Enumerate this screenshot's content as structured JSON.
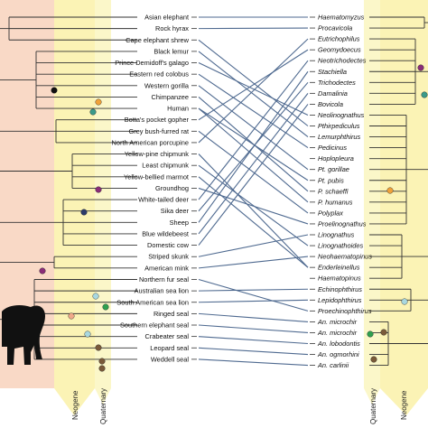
{
  "hosts": [
    "Asian elephant",
    "Rock hyrax",
    "Cape elephant shrew",
    "Black lemur",
    "Prince Demidoff's galago",
    "Eastern red colobus",
    "Western gorilla",
    "Chimpanzee",
    "Human",
    "Botta's pocket gopher",
    "Grey bush-furred rat",
    "North American porcupine",
    "Yellow-pine chipmunk",
    "Least chipmunk",
    "Yellow-bellied marmot",
    "Groundhog",
    "White-tailed deer",
    "Sika deer",
    "Sheep",
    "Blue wildebeest",
    "Domestic cow",
    "Striped skunk",
    "American mink",
    "Northern fur seal",
    "Australian sea lion",
    "South American sea lion",
    "Ringed seal",
    "Southern elephant seal",
    "Crabeater seal",
    "Leopard seal",
    "Weddell seal"
  ],
  "parasites": [
    "Haematomyzus",
    "Procavicola",
    "Eutrichophilus",
    "Geomydoecus",
    "Neotrichodectes",
    "Stachiella",
    "Trichodectes",
    "Damalinia",
    "Bovicola",
    "Neolinognathus",
    "Pthirpediculus",
    "Lemurphthirus",
    "Pedicinus",
    "Hoplopleura",
    "Pt. gorillae",
    "Pt. pubis",
    "P. schaeffi",
    "P. humanus",
    "Polyplax",
    "Proelinognathus",
    "Linognathus",
    "Linognathoides",
    "Neohaematopinus",
    "Enderleinellus",
    "Haematopinus",
    "Echinophthirus",
    "Lepidophthirus",
    "Proechinophthirus",
    "An. microchir",
    "An. microchir",
    "An. lobodontis",
    "An. ogmorhini",
    "An. carlinii"
  ],
  "links": [
    [
      0,
      0
    ],
    [
      1,
      1
    ],
    [
      2,
      10
    ],
    [
      3,
      11
    ],
    [
      4,
      9
    ],
    [
      5,
      12
    ],
    [
      6,
      14
    ],
    [
      7,
      16
    ],
    [
      8,
      15
    ],
    [
      8,
      17
    ],
    [
      9,
      3
    ],
    [
      10,
      18
    ],
    [
      11,
      2
    ],
    [
      12,
      23
    ],
    [
      13,
      21
    ],
    [
      14,
      23
    ],
    [
      15,
      19
    ],
    [
      16,
      4
    ],
    [
      17,
      6
    ],
    [
      18,
      5
    ],
    [
      19,
      7
    ],
    [
      20,
      8
    ],
    [
      21,
      20
    ],
    [
      22,
      22
    ],
    [
      23,
      27
    ],
    [
      24,
      25
    ],
    [
      25,
      26
    ],
    [
      26,
      28
    ],
    [
      27,
      29
    ],
    [
      28,
      30
    ],
    [
      29,
      31
    ],
    [
      30,
      32
    ]
  ],
  "eras_left": [
    "Neogene",
    "Quaternary"
  ],
  "eras_right": [
    "Quaternary",
    "Neogene"
  ],
  "colors": {
    "left_band": "#f9d9c6",
    "neogene_band": "#fbf3b5",
    "quaternary_band": "#fbf7c9",
    "link_line": "#4f6a90",
    "tree_line": "#333333",
    "node_black": "#111111",
    "node_purple": "#8a2d78",
    "node_teal": "#3a9a8a",
    "node_orange": "#f0a23a",
    "node_navy": "#2d3b6a",
    "node_green": "#2fa050",
    "node_pink": "#f0a98a",
    "node_brown": "#7a5a3a",
    "node_lightblue": "#a9d8e0"
  },
  "silhouette": "elephant-silhouette"
}
